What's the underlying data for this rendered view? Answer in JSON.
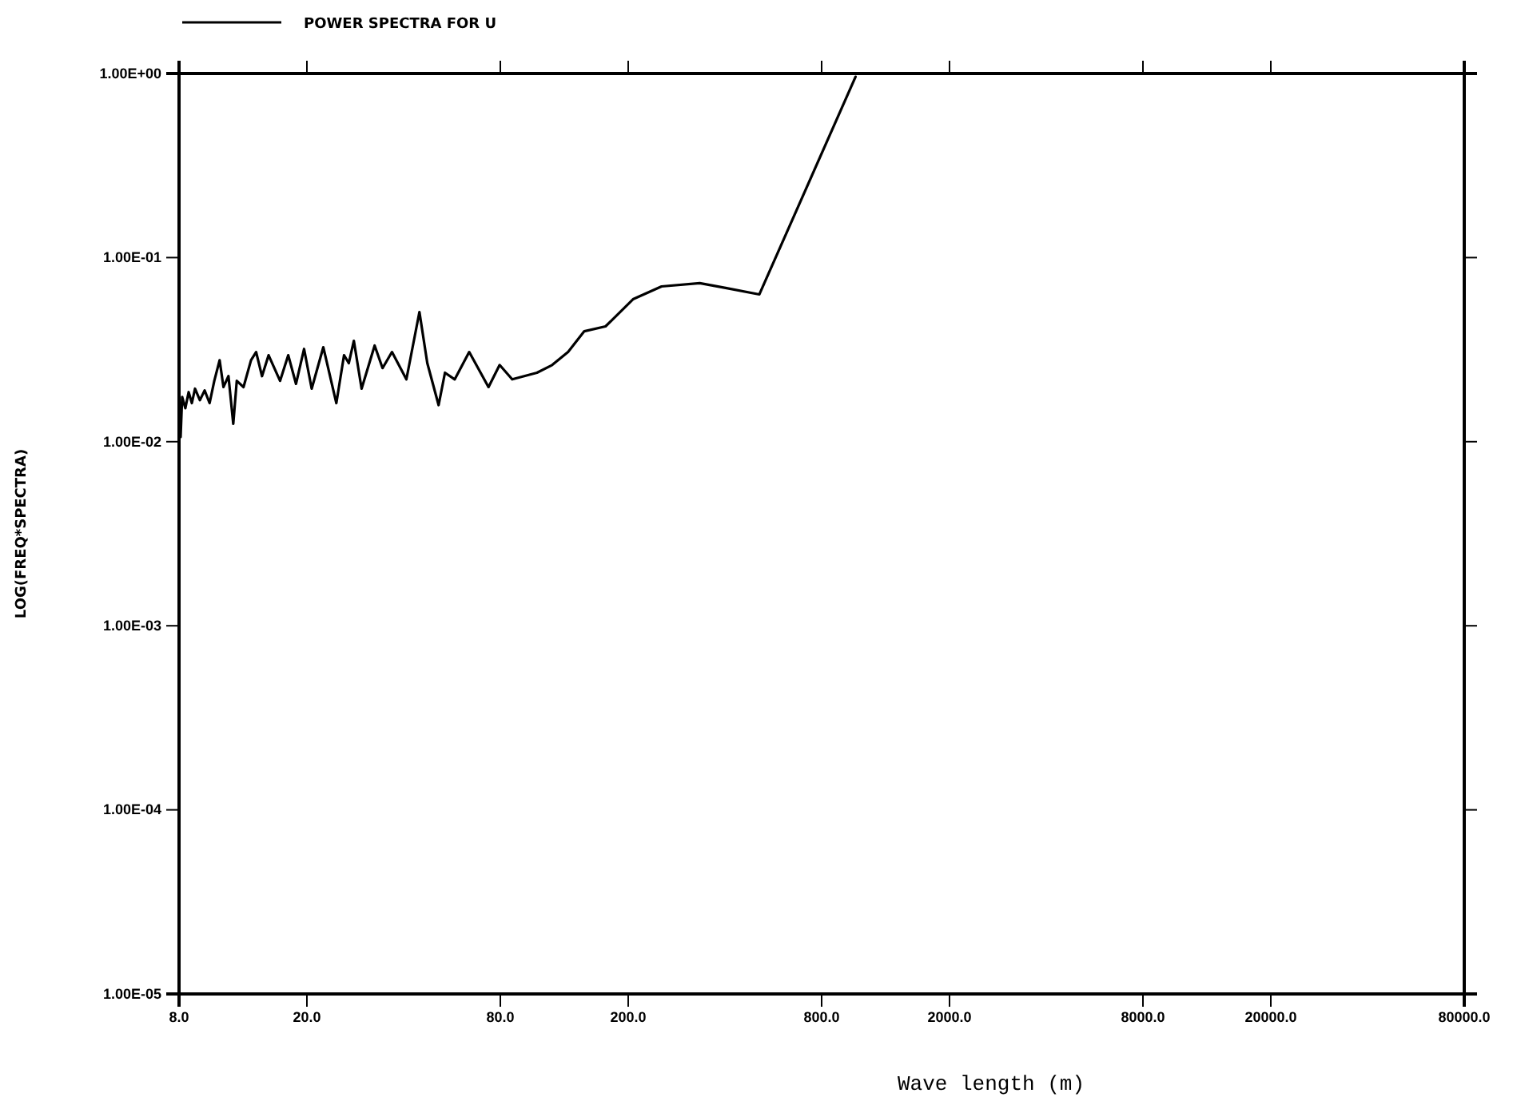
{
  "chart_data": {
    "type": "line",
    "xlabel": "Wave length (m)",
    "ylabel": "LOG(FREQ*SPECTRA)",
    "log": "xy",
    "legend": "top left",
    "grid": false,
    "line_style": "solid",
    "xlim": [
      8,
      80000
    ],
    "ylim": [
      1e-05,
      1
    ],
    "xticks": [
      {
        "value": 8,
        "label": "8.0"
      },
      {
        "value": 20,
        "label": "20.0"
      },
      {
        "value": 80,
        "label": "80.0"
      },
      {
        "value": 200,
        "label": "200.0"
      },
      {
        "value": 800,
        "label": "800.0"
      },
      {
        "value": 2000,
        "label": "2000.0"
      },
      {
        "value": 8000,
        "label": "8000.0"
      },
      {
        "value": 20000,
        "label": "20000.0"
      },
      {
        "value": 80000,
        "label": "80000.0"
      }
    ],
    "yticks": [
      {
        "value": 1e-05,
        "label": "1.00E-05"
      },
      {
        "value": 0.0001,
        "label": "1.00E-04"
      },
      {
        "value": 0.001,
        "label": "1.00E-03"
      },
      {
        "value": 0.01,
        "label": "1.00E-02"
      },
      {
        "value": 0.1,
        "label": "1.00E-01"
      },
      {
        "value": 1,
        "label": "1.00E+00"
      }
    ],
    "series": [
      {
        "name": "POWER SPECTRA FOR U",
        "color": "#000000",
        "x": [
          8.09,
          8.18,
          8.37,
          8.57,
          8.77,
          8.97,
          9.29,
          9.61,
          9.96,
          10.3,
          10.7,
          11.0,
          11.4,
          11.8,
          12.1,
          12.7,
          13.4,
          13.9,
          14.5,
          15.2,
          16.5,
          17.5,
          18.5,
          19.6,
          20.7,
          22.5,
          24.7,
          26.1,
          27.0,
          28.0,
          29.6,
          32.5,
          34.4,
          36.8,
          40.8,
          44.8,
          47.4,
          51.4,
          53.8,
          57.7,
          64.0,
          73.5,
          79.6,
          87.1,
          104,
          116,
          130,
          146,
          170,
          207,
          254,
          334,
          402,
          512,
          1020
        ],
        "values": [
          0.0106,
          0.0175,
          0.0152,
          0.0186,
          0.0162,
          0.0194,
          0.0168,
          0.019,
          0.0162,
          0.0214,
          0.0277,
          0.0198,
          0.0227,
          0.0125,
          0.0214,
          0.0198,
          0.0277,
          0.0307,
          0.0227,
          0.0295,
          0.0214,
          0.0295,
          0.0206,
          0.0319,
          0.0194,
          0.0326,
          0.0162,
          0.0295,
          0.0267,
          0.0353,
          0.0194,
          0.0333,
          0.0251,
          0.0307,
          0.0218,
          0.0506,
          0.0267,
          0.0158,
          0.0237,
          0.0218,
          0.0307,
          0.0198,
          0.0261,
          0.0218,
          0.0237,
          0.0261,
          0.0307,
          0.0398,
          0.0423,
          0.0594,
          0.0697,
          0.0726,
          0.0684,
          0.0631,
          0.96
        ]
      }
    ]
  }
}
